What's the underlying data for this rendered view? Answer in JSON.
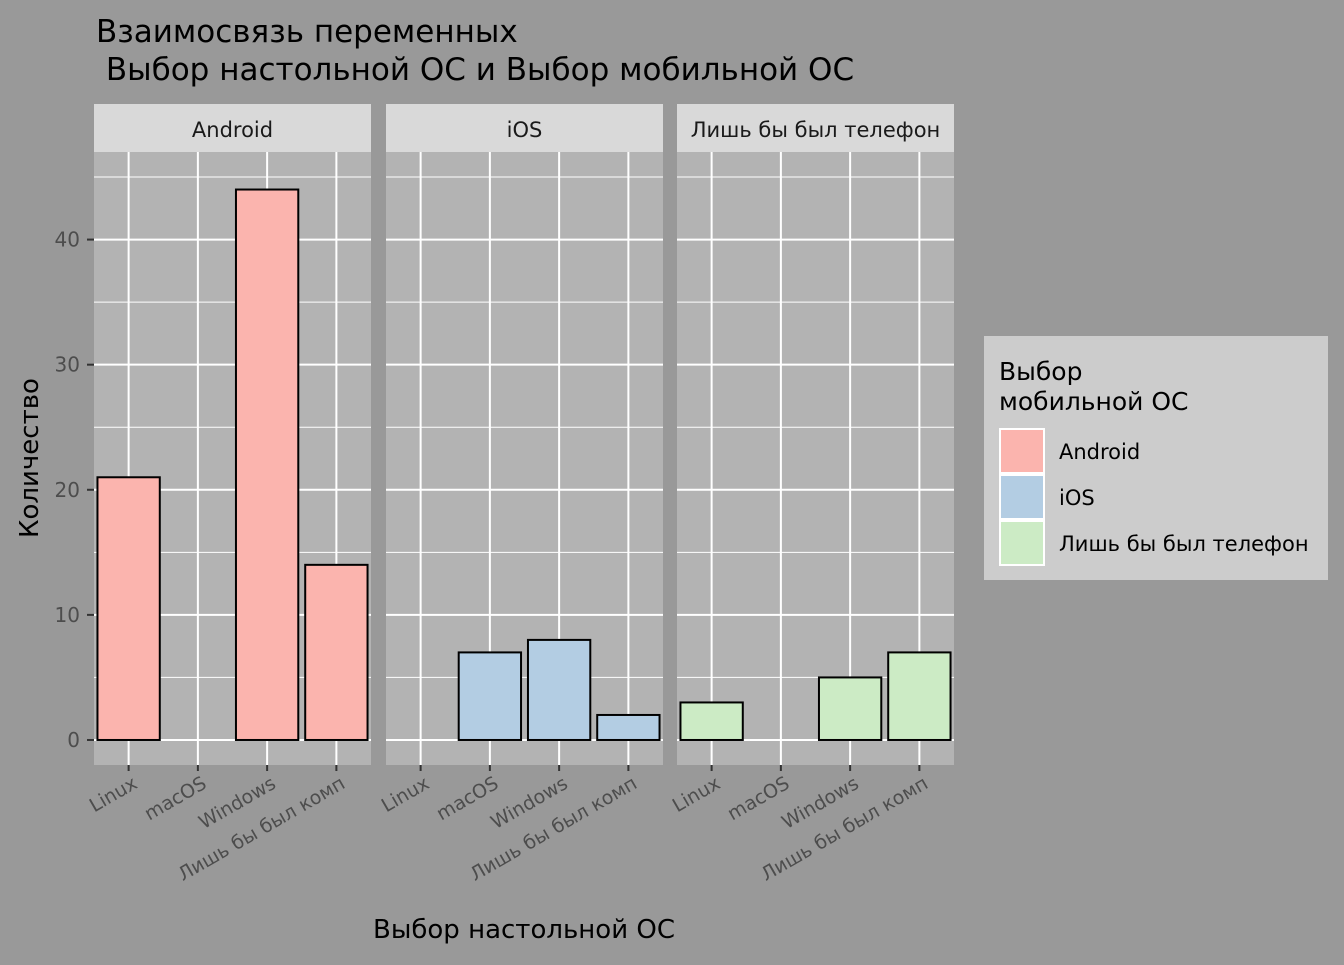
{
  "chart_data": {
    "type": "bar",
    "title_line1": "Взаимосвязь переменных",
    "title_line2": " Выбор настольной ОС и Выбор мобильной ОС",
    "xlabel": "Выбор настольной ОС",
    "ylabel": "Количество",
    "categories": [
      "Linux",
      "macOS",
      "Windows",
      "Лишь бы был комп"
    ],
    "ylim": [
      -2,
      47
    ],
    "yticks": [
      0,
      10,
      20,
      30,
      40
    ],
    "grid": true,
    "facets": [
      {
        "name": "Android",
        "color": "#FBB4AE",
        "values": [
          21,
          0,
          44,
          14
        ]
      },
      {
        "name": "iOS",
        "color": "#B3CDE3",
        "values": [
          0,
          7,
          8,
          2
        ]
      },
      {
        "name": "Лишь бы был телефон",
        "color": "#CCEBC5",
        "values": [
          3,
          0,
          5,
          7
        ]
      }
    ],
    "legend": {
      "title_line1": "Выбор",
      "title_line2": "мобильной ОС",
      "position": "right",
      "items": [
        "Android",
        "iOS",
        "Лишь бы был телефон"
      ]
    }
  }
}
